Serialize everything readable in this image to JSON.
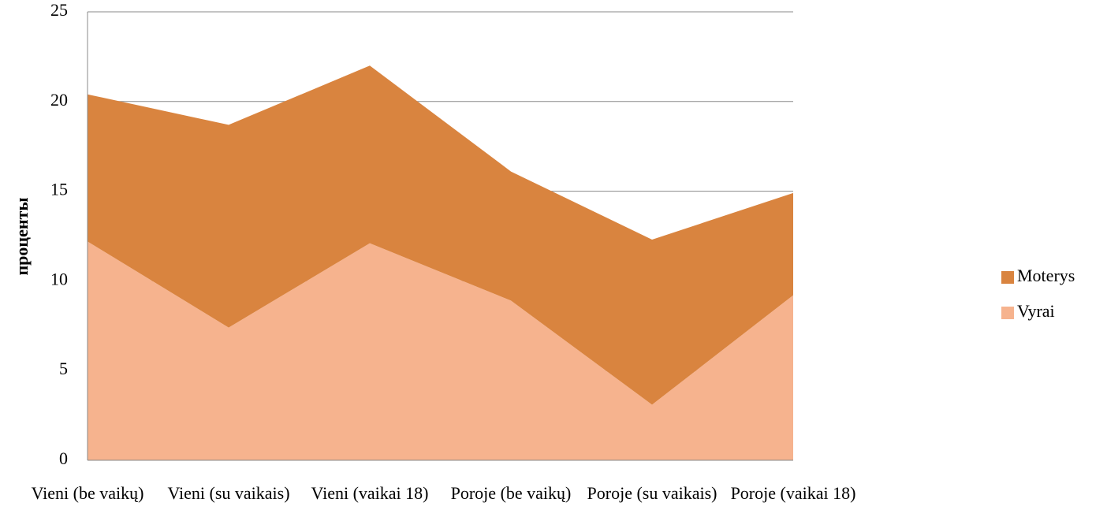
{
  "chart_data": {
    "type": "stacked_area",
    "y_label": "проценты",
    "categories": [
      "Vieni (be vaikų)",
      "Vieni (su vaikais)",
      "Vieni (vaikai 18)",
      "Poroje (be vaikų)",
      "Poroje (su vaikais)",
      "Poroje (vaikai 18)"
    ],
    "series": [
      {
        "name": "Vyrai",
        "color": "#f6b38e",
        "values": [
          12.2,
          7.4,
          12.1,
          8.9,
          3.1,
          9.2
        ]
      },
      {
        "name": "Moterys",
        "color": "#d9843f",
        "values": [
          8.2,
          11.3,
          9.9,
          7.2,
          9.2,
          5.7
        ]
      }
    ],
    "ylim": [
      0,
      25
    ],
    "yticks": [
      0,
      5,
      10,
      15,
      20,
      25
    ],
    "grid": true,
    "legend": "right"
  }
}
